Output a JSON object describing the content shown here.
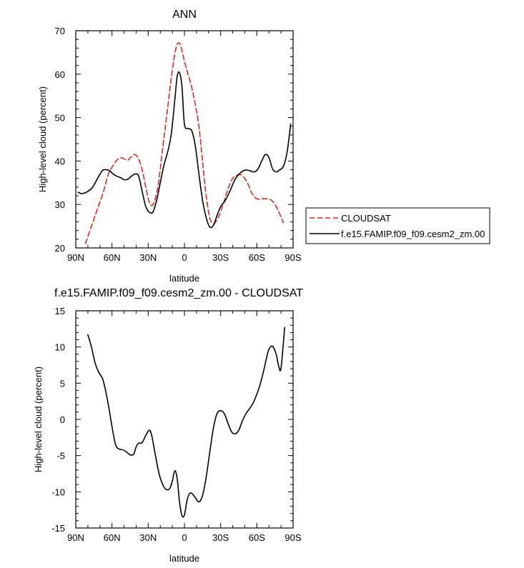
{
  "colors": {
    "cloudsat": "#e3261f",
    "model": "#000000"
  },
  "chart_data": [
    {
      "type": "line",
      "title": "ANN",
      "xlabel": "latitude",
      "ylabel": "High-level cloud (percent)",
      "xlim": [
        -90,
        90
      ],
      "ylim": [
        20,
        70
      ],
      "x_ticks": [
        -90,
        -60,
        -30,
        0,
        30,
        60,
        90
      ],
      "x_tick_labels": [
        "90N",
        "60N",
        "30N",
        "0",
        "30S",
        "60S",
        "90S"
      ],
      "y_ticks": [
        20,
        30,
        40,
        50,
        60,
        70
      ],
      "legend_position": "outside-right",
      "series": [
        {
          "name": "CLOUDSAT",
          "style": "dashed",
          "color": "#e3261f",
          "x": [
            -82,
            -77,
            -72,
            -67,
            -63,
            -59,
            -56,
            -53,
            -50,
            -47,
            -44,
            -41,
            -38,
            -35,
            -32,
            -29,
            -26,
            -22,
            -18,
            -14,
            -10,
            -7,
            -5,
            -3,
            0,
            3,
            6,
            9,
            12,
            15,
            18,
            21,
            24,
            28,
            32,
            36,
            40,
            44,
            47,
            50,
            53,
            56,
            60,
            64,
            68,
            72,
            76,
            79,
            82
          ],
          "y": [
            21,
            25,
            29,
            33,
            37,
            39,
            40.2,
            40.8,
            40.5,
            40.2,
            41,
            41.5,
            40.5,
            38,
            34,
            30.5,
            30,
            34,
            43,
            52,
            61,
            66,
            67.2,
            66.5,
            63,
            60,
            57,
            53,
            48,
            40,
            32,
            27,
            25.5,
            27,
            30,
            33.5,
            36,
            36.8,
            36.8,
            36,
            34.5,
            32.5,
            31.3,
            31.3,
            31.3,
            31,
            29.5,
            27.8,
            25.8
          ]
        },
        {
          "name": "f.e15.FAMIP.f09_f09.cesm2_zm.00",
          "style": "solid",
          "color": "#000000",
          "x": [
            -88,
            -85,
            -80,
            -76,
            -72,
            -68,
            -65,
            -62,
            -59,
            -56,
            -53,
            -50,
            -47,
            -44,
            -41,
            -38,
            -35,
            -32,
            -29,
            -26,
            -23,
            -20,
            -17,
            -14,
            -11,
            -8,
            -6,
            -4,
            -2,
            0,
            3,
            6,
            9,
            12,
            15,
            18,
            21,
            24,
            27,
            30,
            34,
            38,
            42,
            46,
            50,
            54,
            58,
            61,
            64,
            67,
            70,
            73,
            76,
            79,
            82,
            85,
            88
          ],
          "y": [
            32.8,
            32.5,
            33,
            34,
            36,
            37.8,
            38,
            37.8,
            37,
            36.5,
            36.2,
            35.7,
            35.8,
            36.5,
            37,
            36.6,
            33,
            29.5,
            28.2,
            28.3,
            31,
            35,
            39,
            42,
            46,
            54,
            59.5,
            60.3,
            57,
            48.5,
            47.5,
            47,
            43.5,
            37,
            31,
            27,
            24.8,
            25.2,
            27.5,
            29.5,
            31,
            33.3,
            35.8,
            37.2,
            37.9,
            37.8,
            37.5,
            38.2,
            40,
            41.5,
            40.8,
            38.2,
            37.5,
            38,
            38.8,
            42,
            48.5
          ]
        }
      ]
    },
    {
      "type": "line",
      "title": "f.e15.FAMIP.f09_f09.cesm2_zm.00 - CLOUDSAT",
      "xlabel": "latitude",
      "ylabel": "High-level cloud (percent)",
      "xlim": [
        -90,
        90
      ],
      "ylim": [
        -15,
        15
      ],
      "x_ticks": [
        -90,
        -60,
        -30,
        0,
        30,
        60,
        90
      ],
      "x_tick_labels": [
        "90N",
        "60N",
        "30N",
        "0",
        "30S",
        "60S",
        "90S"
      ],
      "y_ticks": [
        -15,
        -10,
        -5,
        0,
        5,
        10,
        15
      ],
      "series": [
        {
          "style": "solid",
          "color": "#000000",
          "x": [
            -80,
            -77,
            -74,
            -71,
            -68,
            -66,
            -63,
            -60,
            -57,
            -54,
            -51,
            -48,
            -45,
            -42,
            -40,
            -38,
            -35,
            -32,
            -29,
            -27,
            -24,
            -21,
            -18,
            -15,
            -12,
            -10,
            -8,
            -6,
            -4,
            -2,
            0,
            2,
            4,
            6,
            9,
            12,
            15,
            18,
            21,
            24,
            27,
            30,
            33,
            36,
            39,
            42,
            45,
            48,
            51,
            54,
            57,
            60,
            63,
            66,
            68,
            70,
            73,
            76,
            78,
            80,
            83
          ],
          "y": [
            11.7,
            10,
            7.8,
            6.5,
            5.7,
            4.5,
            2,
            -1,
            -3.5,
            -4.1,
            -4.2,
            -4.5,
            -4.9,
            -4.8,
            -3.8,
            -3.3,
            -3.2,
            -2.2,
            -1.5,
            -2.3,
            -5,
            -7.5,
            -9,
            -9.7,
            -9.5,
            -8.5,
            -7.1,
            -8.2,
            -11.5,
            -13.3,
            -13.2,
            -11.3,
            -10.3,
            -10.2,
            -10.8,
            -11.4,
            -10.5,
            -8,
            -4.5,
            -1.2,
            0.8,
            1.2,
            0.8,
            -0.5,
            -1.7,
            -2,
            -1.5,
            -0.2,
            0.8,
            1.5,
            2.3,
            3.5,
            5,
            7,
            8.5,
            9.7,
            10.1,
            9,
            7.4,
            7.1,
            12.7
          ]
        }
      ]
    }
  ]
}
